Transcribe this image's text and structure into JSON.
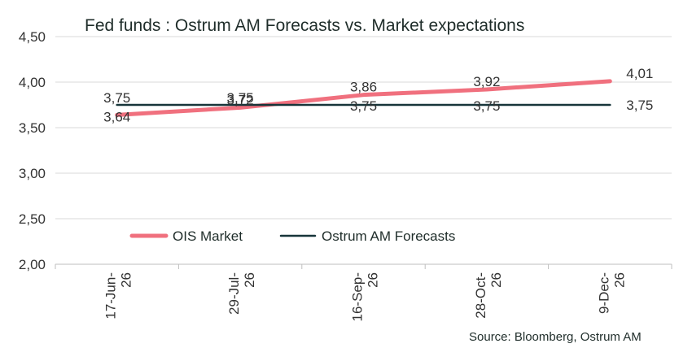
{
  "chart_data": {
    "type": "line",
    "title": "Fed funds : Ostrum AM Forecasts vs. Market expectations",
    "categories": [
      "17-Jun-\n26",
      "29-Jul-\n26",
      "16-Sep-\n26",
      "28-Oct-\n26",
      "9-Dec-\n26"
    ],
    "yticks": [
      "2,00",
      "2,50",
      "3,00",
      "3,50",
      "4,00",
      "4,50"
    ],
    "ylim": [
      2.0,
      4.5
    ],
    "grid": true,
    "legend_position": "bottom-left-inside",
    "series": [
      {
        "name": "OIS Market",
        "values": [
          3.64,
          3.72,
          3.86,
          3.92,
          4.01
        ],
        "labels": [
          "3,64",
          "3,72",
          "3,86",
          "3,92",
          "4,01"
        ],
        "color": "#f0707e"
      },
      {
        "name": "Ostrum AM Forecasts",
        "values": [
          3.75,
          3.75,
          3.75,
          3.75,
          3.75
        ],
        "labels": [
          "3,75",
          "3,75",
          "3,75",
          "3,75",
          "3,75"
        ],
        "color": "#17353a"
      }
    ],
    "source": "Source: Bloomberg, Ostrum AM"
  }
}
